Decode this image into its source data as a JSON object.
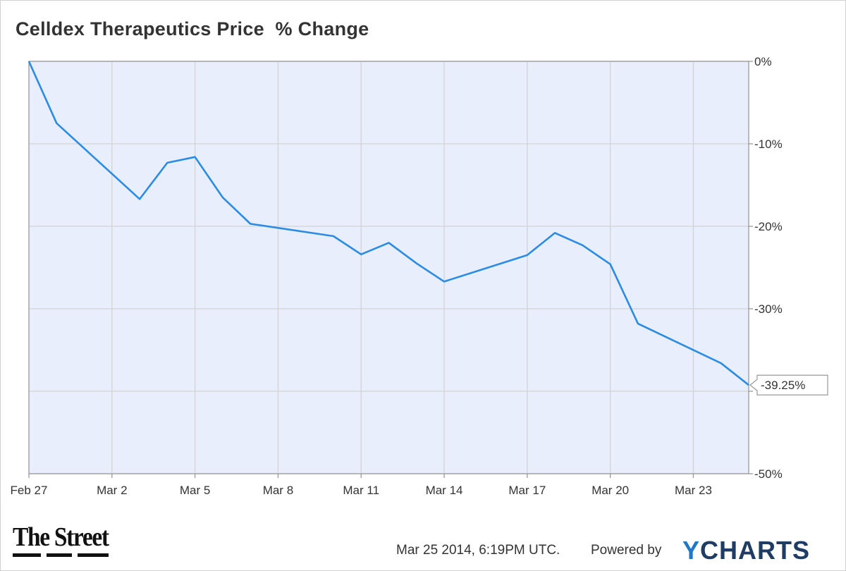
{
  "header": {
    "title": "Celldex Therapeutics Price  % Change"
  },
  "footer": {
    "timestamp": "Mar 25 2014, 6:19PM UTC.",
    "powered_by": "Powered by",
    "ycharts_y": "Y",
    "ycharts_rest": "CHARTS",
    "publisher": "The Street"
  },
  "colors": {
    "line": "#2a8ce6",
    "plot_bg": "#e8eefb",
    "grid": "#d3d3d3",
    "axis": "#999999",
    "last_label_text": "#2a8ce6"
  },
  "chart_data": {
    "type": "line",
    "title": "Celldex Therapeutics Price  % Change",
    "xlabel": "",
    "ylabel": "",
    "x_axis": "date",
    "x_ticks": [
      "Feb 27",
      "Mar 2",
      "Mar 5",
      "Mar 8",
      "Mar 11",
      "Mar 14",
      "Mar 17",
      "Mar 20",
      "Mar 23"
    ],
    "x_tick_dates": [
      "2014-02-27",
      "2014-03-02",
      "2014-03-05",
      "2014-03-08",
      "2014-03-11",
      "2014-03-14",
      "2014-03-17",
      "2014-03-20",
      "2014-03-23"
    ],
    "xlim": [
      "2014-02-27",
      "2014-03-25"
    ],
    "y_ticks": [
      0,
      -10,
      -20,
      -30,
      -40,
      -50
    ],
    "y_tick_labels": [
      "0%",
      "-10%",
      "-20%",
      "-30%",
      "",
      "-50%"
    ],
    "ylim": [
      -50,
      0
    ],
    "y_unit": "%",
    "y_axis_side": "right",
    "grid": true,
    "series": [
      {
        "points": [
          [
            "2014-02-27",
            0.0
          ],
          [
            "2014-02-28",
            -7.5
          ],
          [
            "2014-03-03",
            -16.7
          ],
          [
            "2014-03-04",
            -12.3
          ],
          [
            "2014-03-05",
            -11.6
          ],
          [
            "2014-03-06",
            -16.5
          ],
          [
            "2014-03-07",
            -19.7
          ],
          [
            "2014-03-10",
            -21.2
          ],
          [
            "2014-03-11",
            -23.4
          ],
          [
            "2014-03-12",
            -22.0
          ],
          [
            "2014-03-13",
            -24.5
          ],
          [
            "2014-03-14",
            -26.7
          ],
          [
            "2014-03-17",
            -23.5
          ],
          [
            "2014-03-18",
            -20.8
          ],
          [
            "2014-03-19",
            -22.3
          ],
          [
            "2014-03-20",
            -24.6
          ],
          [
            "2014-03-21",
            -31.8
          ],
          [
            "2014-03-24",
            -36.6
          ],
          [
            "2014-03-25",
            -39.25
          ]
        ],
        "last_value_label": "-39.25%"
      }
    ]
  }
}
